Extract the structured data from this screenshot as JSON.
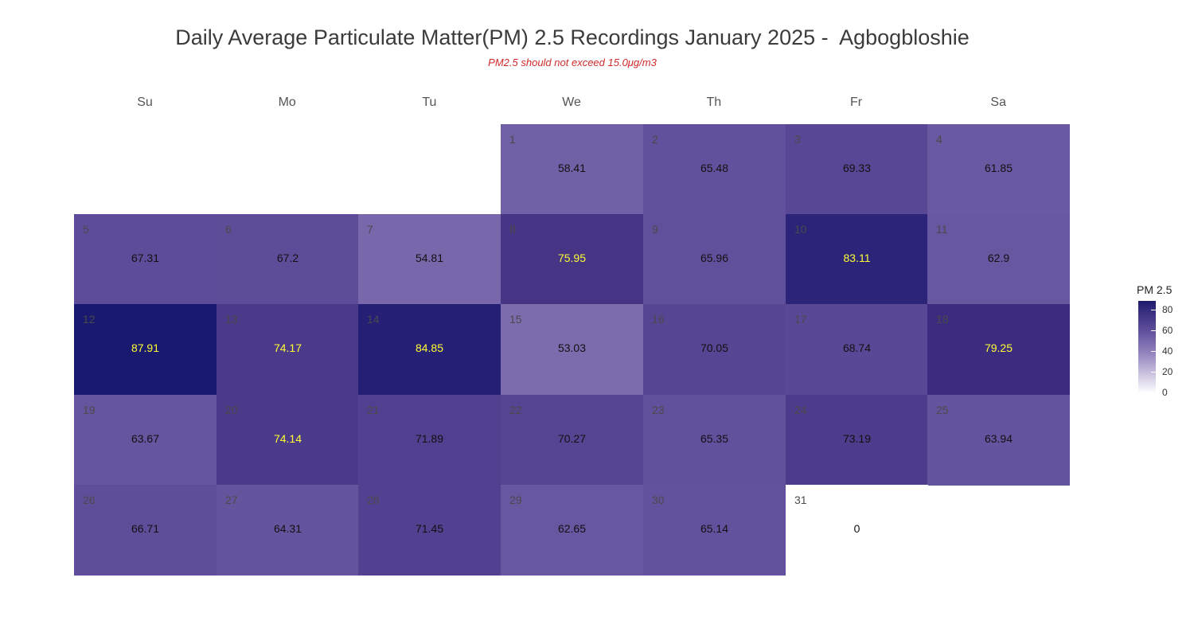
{
  "title": "Daily Average Particulate Matter(PM) 2.5 Recordings January 2025 -  Agbogbloshie",
  "subtitle": "PM2.5 should not exceed 15.0μg/m3",
  "weekdays": [
    "Su",
    "Mo",
    "Tu",
    "We",
    "Th",
    "Fr",
    "Sa"
  ],
  "legend": {
    "title": "PM 2.5",
    "ticks": [
      "80",
      "60",
      "40",
      "20",
      "0"
    ]
  },
  "colors": {
    "low": "#ffffff",
    "high": "#191970",
    "text_dark": "#111111",
    "text_highlight": "#ffff33"
  },
  "chart_data": {
    "type": "heatmap",
    "title": "Daily Average Particulate Matter(PM) 2.5 Recordings January 2025 -  Agbogbloshie",
    "subtitle": "PM2.5 should not exceed 15.0μg/m3",
    "month": "January 2025",
    "first_weekday": "We",
    "scale": {
      "name": "PM 2.5",
      "range": [
        0,
        88
      ]
    },
    "days": [
      {
        "day": "1",
        "value": "58.41"
      },
      {
        "day": "2",
        "value": "65.48"
      },
      {
        "day": "3",
        "value": "69.33"
      },
      {
        "day": "4",
        "value": "61.85"
      },
      {
        "day": "5",
        "value": "67.31"
      },
      {
        "day": "6",
        "value": "67.2"
      },
      {
        "day": "7",
        "value": "54.81"
      },
      {
        "day": "8",
        "value": "75.95"
      },
      {
        "day": "9",
        "value": "65.96"
      },
      {
        "day": "10",
        "value": "83.11"
      },
      {
        "day": "11",
        "value": "62.9"
      },
      {
        "day": "12",
        "value": "87.91"
      },
      {
        "day": "13",
        "value": "74.17"
      },
      {
        "day": "14",
        "value": "84.85"
      },
      {
        "day": "15",
        "value": "53.03"
      },
      {
        "day": "16",
        "value": "70.05"
      },
      {
        "day": "17",
        "value": "68.74"
      },
      {
        "day": "18",
        "value": "79.25"
      },
      {
        "day": "19",
        "value": "63.67"
      },
      {
        "day": "20",
        "value": "74.14"
      },
      {
        "day": "21",
        "value": "71.89"
      },
      {
        "day": "22",
        "value": "70.27"
      },
      {
        "day": "23",
        "value": "65.35"
      },
      {
        "day": "24",
        "value": "73.19"
      },
      {
        "day": "25",
        "value": "63.94"
      },
      {
        "day": "26",
        "value": "66.71"
      },
      {
        "day": "27",
        "value": "64.31"
      },
      {
        "day": "28",
        "value": "71.45"
      },
      {
        "day": "29",
        "value": "62.65"
      },
      {
        "day": "30",
        "value": "65.14"
      },
      {
        "day": "31",
        "value": "0"
      }
    ]
  }
}
